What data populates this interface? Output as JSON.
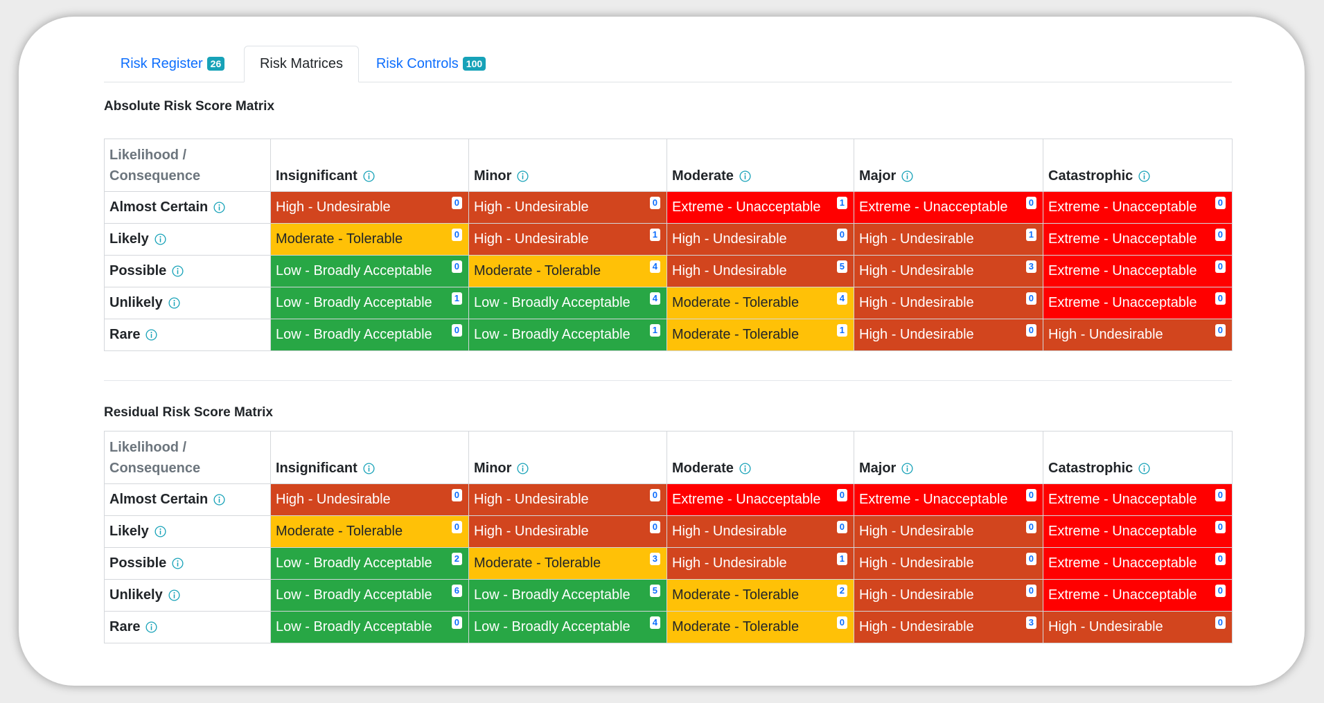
{
  "tabs": [
    {
      "label": "Risk Register",
      "badge": "26",
      "active": false
    },
    {
      "label": "Risk Matrices",
      "badge": "",
      "active": true
    },
    {
      "label": "Risk Controls",
      "badge": "100",
      "active": false
    }
  ],
  "colors": {
    "Extreme - Unacceptable": "#ff0000",
    "High - Undesirable": "#d2451e",
    "Moderate - Tolerable": "#ffc107",
    "Low - Broadly Acceptable": "#28a745",
    "tab_badge": "#17a2b8",
    "link": "#0d6efd"
  },
  "matrices": [
    {
      "title": "Absolute Risk Score Matrix",
      "corner": [
        "Likelihood /",
        "Consequence"
      ],
      "columns": [
        "Insignificant",
        "Minor",
        "Moderate",
        "Major",
        "Catastrophic"
      ],
      "rows": [
        {
          "label": "Almost Certain",
          "cells": [
            {
              "level": "High - Undesirable",
              "count": "0"
            },
            {
              "level": "High - Undesirable",
              "count": "0"
            },
            {
              "level": "Extreme - Unacceptable",
              "count": "1"
            },
            {
              "level": "Extreme - Unacceptable",
              "count": "0"
            },
            {
              "level": "Extreme - Unacceptable",
              "count": "0"
            }
          ]
        },
        {
          "label": "Likely",
          "cells": [
            {
              "level": "Moderate - Tolerable",
              "count": "0"
            },
            {
              "level": "High - Undesirable",
              "count": "1"
            },
            {
              "level": "High - Undesirable",
              "count": "0"
            },
            {
              "level": "High - Undesirable",
              "count": "1"
            },
            {
              "level": "Extreme - Unacceptable",
              "count": "0"
            }
          ]
        },
        {
          "label": "Possible",
          "cells": [
            {
              "level": "Low - Broadly Acceptable",
              "count": "0"
            },
            {
              "level": "Moderate - Tolerable",
              "count": "4"
            },
            {
              "level": "High - Undesirable",
              "count": "5"
            },
            {
              "level": "High - Undesirable",
              "count": "3"
            },
            {
              "level": "Extreme - Unacceptable",
              "count": "0"
            }
          ]
        },
        {
          "label": "Unlikely",
          "cells": [
            {
              "level": "Low - Broadly Acceptable",
              "count": "1"
            },
            {
              "level": "Low - Broadly Acceptable",
              "count": "4"
            },
            {
              "level": "Moderate - Tolerable",
              "count": "4"
            },
            {
              "level": "High - Undesirable",
              "count": "0"
            },
            {
              "level": "Extreme - Unacceptable",
              "count": "0"
            }
          ]
        },
        {
          "label": "Rare",
          "cells": [
            {
              "level": "Low - Broadly Acceptable",
              "count": "0"
            },
            {
              "level": "Low - Broadly Acceptable",
              "count": "1"
            },
            {
              "level": "Moderate - Tolerable",
              "count": "1"
            },
            {
              "level": "High - Undesirable",
              "count": "0"
            },
            {
              "level": "High - Undesirable",
              "count": "0"
            }
          ]
        }
      ]
    },
    {
      "title": "Residual Risk Score Matrix",
      "corner": [
        "Likelihood /",
        "Consequence"
      ],
      "columns": [
        "Insignificant",
        "Minor",
        "Moderate",
        "Major",
        "Catastrophic"
      ],
      "rows": [
        {
          "label": "Almost Certain",
          "cells": [
            {
              "level": "High - Undesirable",
              "count": "0"
            },
            {
              "level": "High - Undesirable",
              "count": "0"
            },
            {
              "level": "Extreme - Unacceptable",
              "count": "0"
            },
            {
              "level": "Extreme - Unacceptable",
              "count": "0"
            },
            {
              "level": "Extreme - Unacceptable",
              "count": "0"
            }
          ]
        },
        {
          "label": "Likely",
          "cells": [
            {
              "level": "Moderate - Tolerable",
              "count": "0"
            },
            {
              "level": "High - Undesirable",
              "count": "0"
            },
            {
              "level": "High - Undesirable",
              "count": "0"
            },
            {
              "level": "High - Undesirable",
              "count": "0"
            },
            {
              "level": "Extreme - Unacceptable",
              "count": "0"
            }
          ]
        },
        {
          "label": "Possible",
          "cells": [
            {
              "level": "Low - Broadly Acceptable",
              "count": "2"
            },
            {
              "level": "Moderate - Tolerable",
              "count": "3"
            },
            {
              "level": "High - Undesirable",
              "count": "1"
            },
            {
              "level": "High - Undesirable",
              "count": "0"
            },
            {
              "level": "Extreme - Unacceptable",
              "count": "0"
            }
          ]
        },
        {
          "label": "Unlikely",
          "cells": [
            {
              "level": "Low - Broadly Acceptable",
              "count": "6"
            },
            {
              "level": "Low - Broadly Acceptable",
              "count": "5"
            },
            {
              "level": "Moderate - Tolerable",
              "count": "2"
            },
            {
              "level": "High - Undesirable",
              "count": "0"
            },
            {
              "level": "Extreme - Unacceptable",
              "count": "0"
            }
          ]
        },
        {
          "label": "Rare",
          "cells": [
            {
              "level": "Low - Broadly Acceptable",
              "count": "0"
            },
            {
              "level": "Low - Broadly Acceptable",
              "count": "4"
            },
            {
              "level": "Moderate - Tolerable",
              "count": "0"
            },
            {
              "level": "High - Undesirable",
              "count": "3"
            },
            {
              "level": "High - Undesirable",
              "count": "0"
            }
          ]
        }
      ]
    }
  ]
}
